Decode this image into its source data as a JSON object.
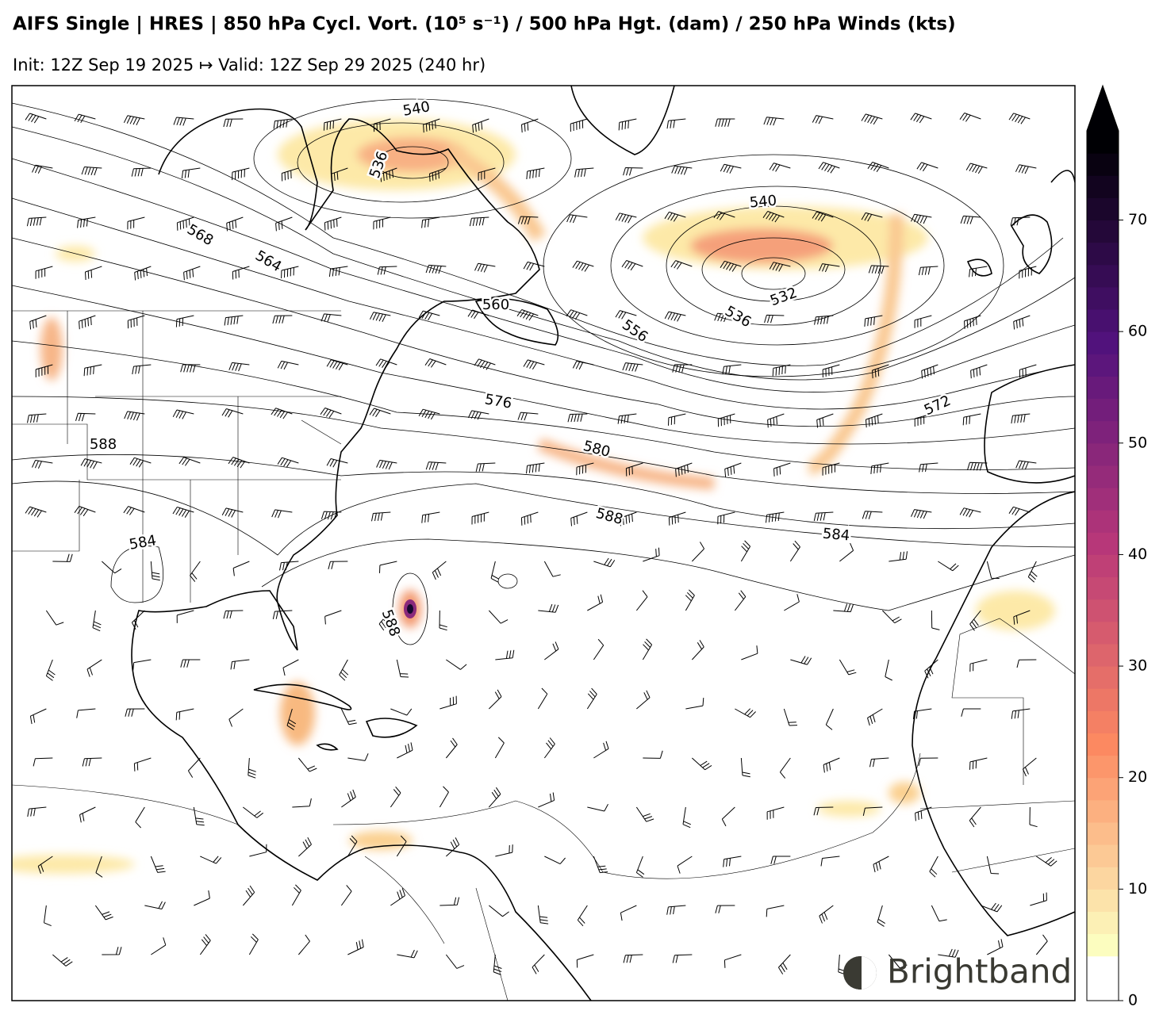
{
  "header": {
    "title": "AIFS Single | HRES | 850 hPa Cycl. Vort. (10⁵ s⁻¹) / 500 hPa Hgt. (dam) / 250 hPa Winds (kts)",
    "subtitle": "Init: 12Z Sep 19 2025 ↦ Valid: 12Z Sep 29 2025 (240 hr)"
  },
  "map": {
    "contour_labels": [
      540,
      536,
      568,
      564,
      560,
      556,
      540,
      536,
      532,
      576,
      580,
      588,
      584,
      572,
      588,
      584,
      588
    ]
  },
  "colorbar": {
    "colormap": "magma_r",
    "lim": [
      0,
      78
    ],
    "ticks": [
      0,
      10,
      20,
      30,
      40,
      50,
      60,
      70
    ],
    "levels": [
      4,
      6,
      8,
      10,
      12,
      14,
      16,
      18,
      20,
      22,
      24,
      26,
      28,
      30,
      32,
      34,
      36,
      38,
      40,
      42,
      44,
      46,
      48,
      50,
      52,
      54,
      56,
      58,
      60,
      62,
      64,
      66,
      68,
      70,
      72,
      74,
      76,
      78
    ]
  },
  "logo": {
    "text": "Brightband"
  }
}
